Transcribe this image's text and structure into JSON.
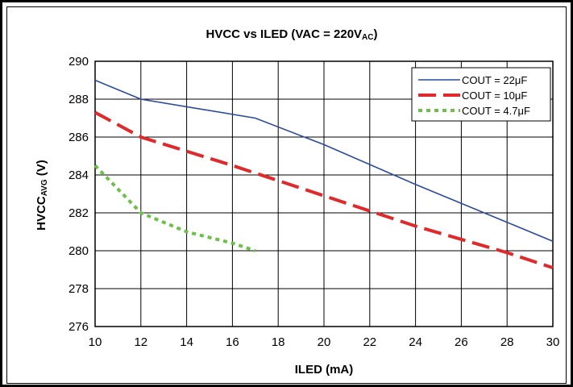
{
  "chart_data": {
    "type": "line",
    "title_main": "HVCC vs ILED (VAC = 220V",
    "title_sub": "AC",
    "title_end": ")",
    "xlabel": "ILED (mA)",
    "ylabel_main": "HVCC",
    "ylabel_sub": "AVG",
    "ylabel_end": " (V)",
    "xlim": [
      10,
      30
    ],
    "ylim": [
      276,
      290
    ],
    "xticks": [
      "10",
      "12",
      "14",
      "16",
      "18",
      "20",
      "22",
      "24",
      "26",
      "28",
      "30"
    ],
    "yticks": [
      "276",
      "278",
      "280",
      "282",
      "284",
      "286",
      "288",
      "290"
    ],
    "grid": true,
    "legend_position": "top-right",
    "series": [
      {
        "name": "COUT = 22μF",
        "color": "#2b4a9f",
        "style": "solid",
        "x": [
          10,
          12,
          17,
          20,
          24,
          28,
          30
        ],
        "y": [
          289.0,
          288.0,
          287.0,
          285.6,
          283.5,
          281.5,
          280.5
        ]
      },
      {
        "name": "COUT = 10μF",
        "color": "#e0292b",
        "style": "dashed",
        "x": [
          10,
          12,
          16,
          20,
          24,
          28,
          30
        ],
        "y": [
          287.3,
          286.0,
          284.5,
          282.9,
          281.3,
          279.9,
          279.1
        ]
      },
      {
        "name": "COUT = 4.7μF",
        "color": "#6cc04a",
        "style": "dotted",
        "x": [
          10,
          12,
          14,
          16,
          17
        ],
        "y": [
          284.5,
          282.0,
          281.0,
          280.4,
          280.0
        ]
      }
    ]
  }
}
